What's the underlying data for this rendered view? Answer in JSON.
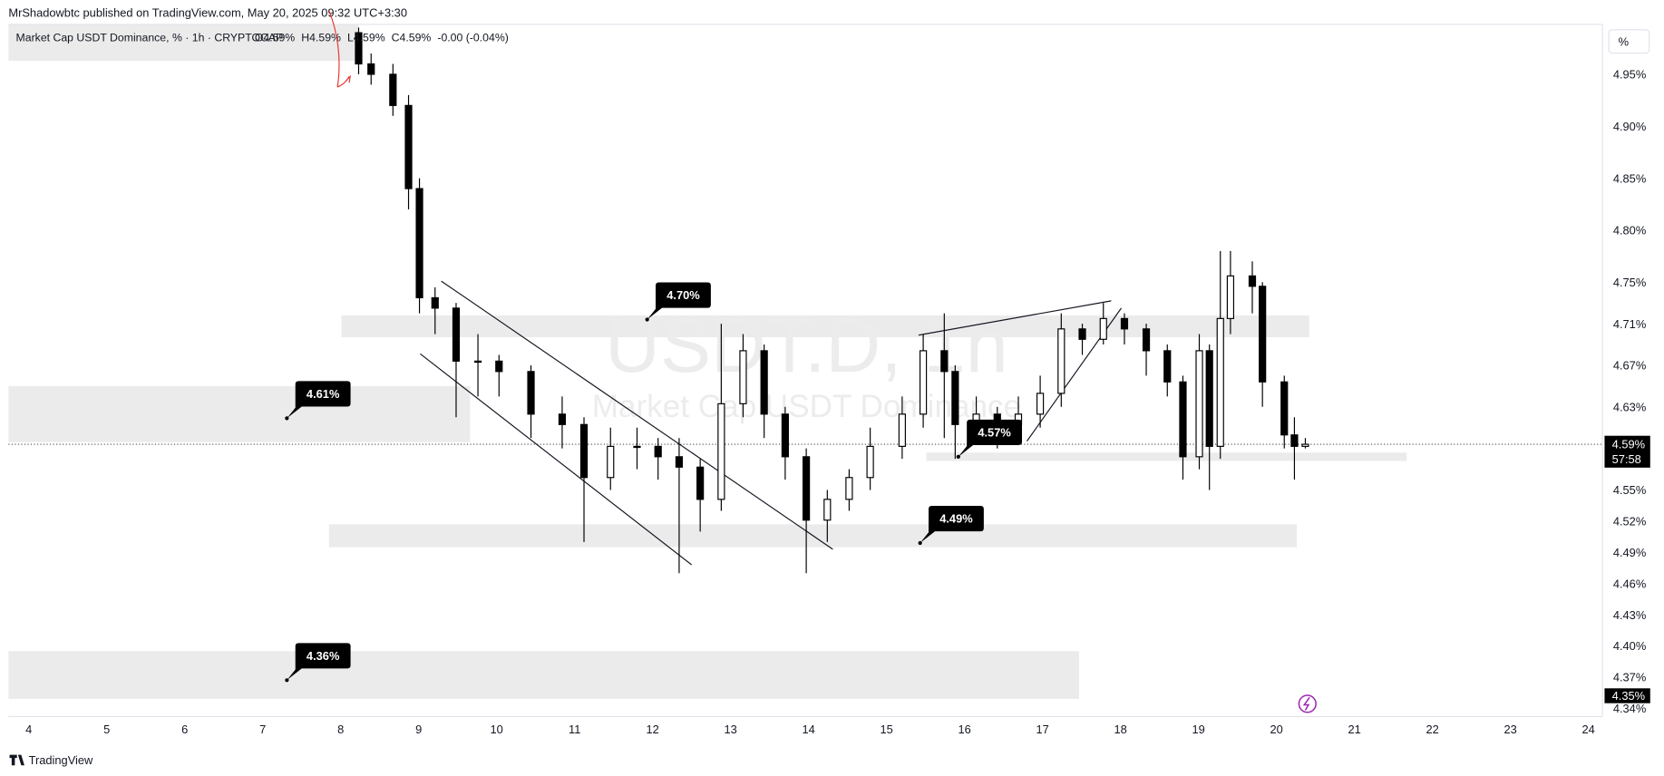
{
  "header": {
    "publisher": "MrShadowbtc published on TradingView.com, May 20, 2025 09:32 UTC+3:30",
    "footer": "TradingView"
  },
  "chart_data": {
    "type": "candlestick",
    "legend_title": "Market Cap USDT Dominance, % · 1h · CRYPTOCAP",
    "ohlc_readout": [
      "O4.59%",
      "H4.59%",
      "L4.59%",
      "C4.59%",
      "-0.00 (-0.04%)"
    ],
    "watermark": {
      "symbol": "USDT.D, 1h",
      "name": "Market Cap USDT Dominance"
    },
    "unit_label": "%",
    "up_color": "#ffffff",
    "down_color": "#000000",
    "wick_color": "#000000",
    "x": [
      8.23,
      8.39,
      8.67,
      8.87,
      9.01,
      9.21,
      9.48,
      9.76,
      10.03,
      10.44,
      10.84,
      11.12,
      11.46,
      11.8,
      12.07,
      12.34,
      12.61,
      12.88,
      13.16,
      13.43,
      13.7,
      13.97,
      14.24,
      14.52,
      14.79,
      15.2,
      15.47,
      15.74,
      15.88,
      16.15,
      16.42,
      16.69,
      16.97,
      17.24,
      17.51,
      17.78,
      18.05,
      18.33,
      18.6,
      18.8,
      19.01,
      19.14,
      19.28,
      19.41,
      19.69,
      19.82,
      20.1,
      20.23,
      20.37
    ],
    "open": [
      4.99,
      4.96,
      4.95,
      4.92,
      4.84,
      4.735,
      4.725,
      4.674,
      4.674,
      4.664,
      4.623,
      4.613,
      4.562,
      4.592,
      4.592,
      4.582,
      4.572,
      4.541,
      4.633,
      4.684,
      4.623,
      4.582,
      4.521,
      4.541,
      4.562,
      4.592,
      4.623,
      4.684,
      4.664,
      4.613,
      4.623,
      4.613,
      4.623,
      4.643,
      4.705,
      4.695,
      4.715,
      4.705,
      4.684,
      4.654,
      4.582,
      4.684,
      4.592,
      4.715,
      4.756,
      4.746,
      4.654,
      4.603,
      4.592
    ],
    "high": [
      4.995,
      4.97,
      4.96,
      4.93,
      4.85,
      4.745,
      4.73,
      4.7,
      4.68,
      4.67,
      4.64,
      4.62,
      4.61,
      4.61,
      4.6,
      4.6,
      4.58,
      4.71,
      4.7,
      4.69,
      4.63,
      4.59,
      4.55,
      4.57,
      4.61,
      4.64,
      4.7,
      4.72,
      4.67,
      4.64,
      4.63,
      4.64,
      4.66,
      4.72,
      4.71,
      4.73,
      4.72,
      4.71,
      4.69,
      4.66,
      4.7,
      4.69,
      4.78,
      4.78,
      4.77,
      4.75,
      4.66,
      4.62,
      4.6
    ],
    "low": [
      4.95,
      4.94,
      4.91,
      4.82,
      4.72,
      4.7,
      4.62,
      4.64,
      4.64,
      4.6,
      4.59,
      4.5,
      4.55,
      4.57,
      4.56,
      4.47,
      4.51,
      4.53,
      4.62,
      4.6,
      4.56,
      4.47,
      4.5,
      4.53,
      4.55,
      4.58,
      4.61,
      4.6,
      4.58,
      4.6,
      4.59,
      4.6,
      4.61,
      4.63,
      4.68,
      4.69,
      4.69,
      4.66,
      4.64,
      4.56,
      4.57,
      4.55,
      4.58,
      4.7,
      4.72,
      4.63,
      4.59,
      4.56,
      4.59
    ],
    "close": [
      4.96,
      4.95,
      4.92,
      4.84,
      4.735,
      4.725,
      4.674,
      4.674,
      4.664,
      4.623,
      4.613,
      4.562,
      4.592,
      4.592,
      4.582,
      4.572,
      4.541,
      4.633,
      4.684,
      4.623,
      4.582,
      4.521,
      4.541,
      4.562,
      4.592,
      4.623,
      4.684,
      4.664,
      4.613,
      4.623,
      4.613,
      4.623,
      4.643,
      4.705,
      4.695,
      4.715,
      4.705,
      4.684,
      4.654,
      4.582,
      4.684,
      4.592,
      4.715,
      4.756,
      4.746,
      4.654,
      4.603,
      4.592,
      4.594
    ],
    "last_price_label": "4.59%",
    "countdown": "57:58",
    "alert_level": {
      "value": 4.352,
      "label": "4.35%"
    },
    "xlim": [
      3.74,
      24.18
    ],
    "ylim": [
      4.332,
      4.998
    ],
    "xticks": [
      4,
      5,
      6,
      7,
      8,
      9,
      10,
      11,
      12,
      13,
      14,
      15,
      16,
      17,
      18,
      19,
      20,
      21,
      22,
      23,
      24
    ],
    "yticks": [
      {
        "value": 4.95,
        "label": "4.95%"
      },
      {
        "value": 4.9,
        "label": "4.90%"
      },
      {
        "value": 4.85,
        "label": "4.85%"
      },
      {
        "value": 4.8,
        "label": "4.80%"
      },
      {
        "value": 4.75,
        "label": "4.75%"
      },
      {
        "value": 4.71,
        "label": "4.71%"
      },
      {
        "value": 4.67,
        "label": "4.67%"
      },
      {
        "value": 4.63,
        "label": "4.63%"
      },
      {
        "value": 4.55,
        "label": "4.55%"
      },
      {
        "value": 4.52,
        "label": "4.52%"
      },
      {
        "value": 4.49,
        "label": "4.49%"
      },
      {
        "value": 4.46,
        "label": "4.46%"
      },
      {
        "value": 4.43,
        "label": "4.43%"
      },
      {
        "value": 4.4,
        "label": "4.40%"
      },
      {
        "value": 4.37,
        "label": "4.37%"
      },
      {
        "value": 4.34,
        "label": "4.34%"
      }
    ],
    "grid": false,
    "zones": [
      {
        "x": [
          3.74,
          8.23
        ],
        "y": [
          4.963,
          4.998
        ]
      },
      {
        "x": [
          8.01,
          20.42
        ],
        "y": [
          4.697,
          4.718
        ]
      },
      {
        "x": [
          3.74,
          9.66
        ],
        "y": [
          4.596,
          4.65
        ]
      },
      {
        "x": [
          15.51,
          21.67
        ],
        "y": [
          4.578,
          4.586
        ]
      },
      {
        "x": [
          7.85,
          20.26
        ],
        "y": [
          4.495,
          4.517
        ]
      },
      {
        "x": [
          3.74,
          17.47
        ],
        "y": [
          4.349,
          4.395
        ]
      }
    ],
    "trend_lines": [
      {
        "x": [
          9.29,
          14.31
        ],
        "y": [
          4.751,
          4.493
        ]
      },
      {
        "x": [
          9.02,
          12.5
        ],
        "y": [
          4.681,
          4.478
        ]
      },
      {
        "x": [
          15.41,
          17.88
        ],
        "y": [
          4.699,
          4.732
        ]
      },
      {
        "x": [
          16.8,
          18.01
        ],
        "y": [
          4.597,
          4.725
        ]
      }
    ],
    "annotations": [
      {
        "label": "4.70%",
        "x": 11.93,
        "y": 4.714
      },
      {
        "label": "4.61%",
        "x": 7.31,
        "y": 4.619
      },
      {
        "label": "4.57%",
        "x": 15.92,
        "y": 4.582
      },
      {
        "label": "4.49%",
        "x": 15.43,
        "y": 4.499
      },
      {
        "label": "4.36%",
        "x": 7.31,
        "y": 4.367
      }
    ]
  }
}
